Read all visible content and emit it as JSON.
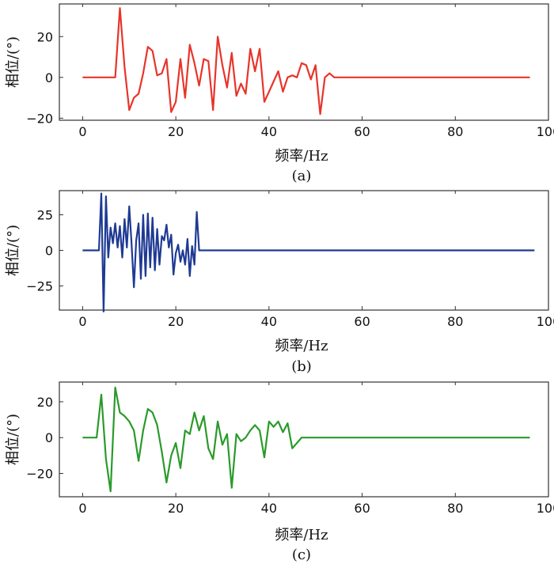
{
  "chart_data": [
    {
      "type": "line",
      "panel_label": "(a)",
      "xlabel": "频率/Hz",
      "ylabel": "相位/(°)",
      "xlim": [
        -5,
        100
      ],
      "ylim": [
        -21,
        36
      ],
      "xticks": [
        0,
        20,
        40,
        60,
        80,
        100
      ],
      "yticks": [
        -20,
        0,
        20
      ],
      "color": "#e8342a",
      "series": [
        {
          "x": [
            0,
            7,
            8,
            9,
            10,
            11,
            12,
            13,
            14,
            15,
            16,
            17,
            18,
            19,
            20,
            21,
            22,
            23,
            24,
            25,
            26,
            27,
            28,
            29,
            30,
            31,
            32,
            33,
            34,
            35,
            36,
            37,
            38,
            39,
            40,
            41,
            42,
            43,
            44,
            45,
            46,
            47,
            48,
            49,
            50,
            51,
            52,
            53,
            54,
            60,
            70,
            80,
            96
          ],
          "y": [
            0,
            0,
            34,
            5,
            -16,
            -10,
            -8,
            2,
            15,
            13,
            1,
            2,
            9,
            -17,
            -12,
            9,
            -10,
            16,
            7,
            -4,
            9,
            8,
            -16,
            20,
            6,
            -5,
            12,
            -9,
            -3,
            -8,
            14,
            3,
            14,
            -12,
            -7,
            -2,
            3,
            -7,
            0,
            1,
            0,
            7,
            6,
            -1,
            6,
            -18,
            0,
            2,
            0,
            0,
            0,
            0,
            0
          ]
        }
      ]
    },
    {
      "type": "line",
      "panel_label": "(b)",
      "xlabel": "频率/Hz",
      "ylabel": "相位/(°)",
      "xlim": [
        -5,
        100
      ],
      "ylim": [
        -42,
        42
      ],
      "xticks": [
        0,
        20,
        40,
        60,
        80,
        100
      ],
      "yticks": [
        -25,
        0,
        25
      ],
      "color": "#1f3a93",
      "series": [
        {
          "x": [
            0,
            3.5,
            4,
            4.5,
            5,
            5.5,
            6,
            6.5,
            7,
            7.5,
            8,
            8.5,
            9,
            9.5,
            10,
            10.5,
            11,
            11.5,
            12,
            12.5,
            13,
            13.5,
            14,
            14.5,
            15,
            15.5,
            16,
            16.5,
            17,
            17.5,
            18,
            18.5,
            19,
            19.5,
            20,
            20.5,
            21,
            21.5,
            22,
            22.5,
            23,
            23.5,
            24,
            24.5,
            25,
            30,
            40,
            50,
            60,
            70,
            80,
            97
          ],
          "y": [
            0,
            0,
            40,
            -43,
            38,
            -5,
            16,
            5,
            19,
            2,
            17,
            -5,
            22,
            2,
            31,
            5,
            -26,
            7,
            19,
            -20,
            25,
            -18,
            26,
            -12,
            23,
            -14,
            15,
            -10,
            10,
            7,
            18,
            2,
            11,
            -17,
            -2,
            4,
            -8,
            0,
            -10,
            8,
            -18,
            3,
            -10,
            27,
            0,
            0,
            0,
            0,
            0,
            0,
            0,
            0
          ]
        }
      ]
    },
    {
      "type": "line",
      "panel_label": "(c)",
      "xlabel": "频率/Hz",
      "ylabel": "相位/(°)",
      "xlim": [
        -5,
        100
      ],
      "ylim": [
        -33,
        31
      ],
      "xticks": [
        0,
        20,
        40,
        60,
        80,
        100
      ],
      "yticks": [
        -20,
        0,
        20
      ],
      "color": "#2a9a2a",
      "series": [
        {
          "x": [
            0,
            3,
            4,
            5,
            6,
            7,
            8,
            9,
            10,
            11,
            12,
            13,
            14,
            15,
            16,
            17,
            18,
            19,
            20,
            21,
            22,
            23,
            24,
            25,
            26,
            27,
            28,
            29,
            30,
            31,
            32,
            33,
            34,
            35,
            36,
            37,
            38,
            39,
            40,
            41,
            42,
            43,
            44,
            45,
            46,
            47,
            48,
            60,
            70,
            80,
            96
          ],
          "y": [
            0,
            0,
            24,
            -12,
            -30,
            28,
            14,
            12,
            9,
            4,
            -13,
            4,
            16,
            14,
            7,
            -8,
            -25,
            -10,
            -3,
            -17,
            4,
            2,
            14,
            4,
            12,
            -6,
            -12,
            9,
            -4,
            2,
            -28,
            2,
            -2,
            0,
            4,
            7,
            4,
            -11,
            9,
            6,
            9,
            3,
            8,
            -6,
            -3,
            0,
            0,
            0,
            0,
            0,
            0
          ]
        }
      ]
    }
  ]
}
